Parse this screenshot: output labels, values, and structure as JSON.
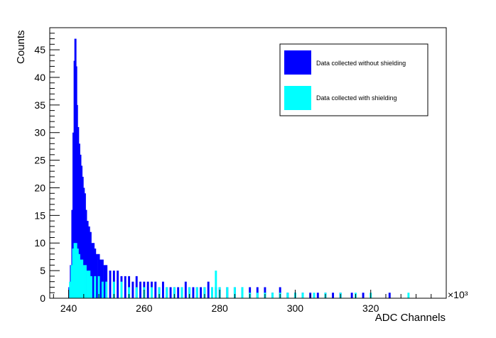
{
  "chart_data": {
    "type": "bar",
    "title": "",
    "xlabel": "ADC Channels",
    "ylabel": "Counts",
    "x_multiplier": "×10³",
    "xlim": [
      235,
      340
    ],
    "ylim": [
      0,
      49
    ],
    "x_ticks": [
      240,
      260,
      280,
      300,
      320
    ],
    "y_ticks": [
      0,
      5,
      10,
      15,
      20,
      25,
      30,
      35,
      40,
      45
    ],
    "legend_position": "top-right",
    "series": [
      {
        "name": "Data collected without shielding",
        "color": "#0000ff",
        "points": [
          [
            240.2,
            2
          ],
          [
            240.6,
            6
          ],
          [
            241.0,
            16
          ],
          [
            241.3,
            30
          ],
          [
            241.6,
            43
          ],
          [
            241.8,
            47
          ],
          [
            242.0,
            42
          ],
          [
            242.2,
            35
          ],
          [
            242.5,
            31
          ],
          [
            242.8,
            28
          ],
          [
            243.1,
            26
          ],
          [
            243.4,
            24
          ],
          [
            243.7,
            22
          ],
          [
            244.0,
            20
          ],
          [
            244.3,
            19
          ],
          [
            244.6,
            16
          ],
          [
            245.0,
            14
          ],
          [
            245.4,
            13
          ],
          [
            245.8,
            12
          ],
          [
            246.2,
            10
          ],
          [
            246.6,
            10
          ],
          [
            247.0,
            9
          ],
          [
            247.5,
            8
          ],
          [
            248.0,
            8
          ],
          [
            248.5,
            7
          ],
          [
            249.0,
            7
          ],
          [
            249.5,
            6
          ],
          [
            250.0,
            6
          ],
          [
            251.0,
            5
          ],
          [
            252.0,
            5
          ],
          [
            253.0,
            5
          ],
          [
            254.0,
            4
          ],
          [
            255.0,
            4
          ],
          [
            256.0,
            4
          ],
          [
            257.0,
            3
          ],
          [
            258.0,
            4
          ],
          [
            259.0,
            3
          ],
          [
            260.0,
            3
          ],
          [
            261.0,
            3
          ],
          [
            262.0,
            3
          ],
          [
            263.0,
            3
          ],
          [
            264.0,
            2
          ],
          [
            265.0,
            3
          ],
          [
            266.0,
            2
          ],
          [
            267.0,
            2
          ],
          [
            268.0,
            2
          ],
          [
            269.0,
            2
          ],
          [
            270.0,
            2
          ],
          [
            271.0,
            3
          ],
          [
            272.0,
            2
          ],
          [
            273.0,
            2
          ],
          [
            274.0,
            2
          ],
          [
            275.0,
            2
          ],
          [
            276.0,
            2
          ],
          [
            277.0,
            3
          ],
          [
            278.0,
            2
          ],
          [
            279.0,
            2
          ],
          [
            280.0,
            2
          ],
          [
            282.0,
            2
          ],
          [
            284.0,
            2
          ],
          [
            286.0,
            2
          ],
          [
            288.0,
            2
          ],
          [
            290.0,
            2
          ],
          [
            292.0,
            2
          ],
          [
            294.0,
            1
          ],
          [
            296.0,
            2
          ],
          [
            298.0,
            1
          ],
          [
            300.0,
            1
          ],
          [
            302.0,
            1
          ],
          [
            304.0,
            1
          ],
          [
            306.0,
            1
          ],
          [
            308.0,
            1
          ],
          [
            310.0,
            1
          ],
          [
            312.0,
            1
          ],
          [
            315.0,
            1
          ],
          [
            318.0,
            1
          ],
          [
            325.0,
            1
          ]
        ]
      },
      {
        "name": "Data collected with shielding",
        "color": "#00ffff",
        "points": [
          [
            240.4,
            3
          ],
          [
            240.8,
            6
          ],
          [
            241.2,
            9
          ],
          [
            241.6,
            10
          ],
          [
            242.0,
            10
          ],
          [
            242.4,
            9
          ],
          [
            242.8,
            8
          ],
          [
            243.2,
            7
          ],
          [
            243.6,
            7
          ],
          [
            244.0,
            6
          ],
          [
            244.5,
            6
          ],
          [
            245.0,
            5
          ],
          [
            245.5,
            5
          ],
          [
            246.0,
            4
          ],
          [
            247.0,
            4
          ],
          [
            248.0,
            4
          ],
          [
            249.0,
            3
          ],
          [
            250.0,
            3
          ],
          [
            252.0,
            3
          ],
          [
            254.0,
            3
          ],
          [
            256.0,
            2
          ],
          [
            258.0,
            2
          ],
          [
            260.0,
            2
          ],
          [
            262.0,
            2
          ],
          [
            264.0,
            2
          ],
          [
            266.0,
            2
          ],
          [
            268.0,
            2
          ],
          [
            270.0,
            2
          ],
          [
            272.0,
            2
          ],
          [
            274.0,
            2
          ],
          [
            276.0,
            2
          ],
          [
            278.0,
            2
          ],
          [
            279.0,
            5
          ],
          [
            280.0,
            2
          ],
          [
            282.0,
            2
          ],
          [
            284.0,
            2
          ],
          [
            286.0,
            2
          ],
          [
            288.0,
            1
          ],
          [
            290.0,
            1
          ],
          [
            292.0,
            1
          ],
          [
            294.0,
            1
          ],
          [
            296.0,
            1
          ],
          [
            298.0,
            1
          ],
          [
            300.0,
            1
          ],
          [
            302.0,
            1
          ],
          [
            305.0,
            1
          ],
          [
            308.0,
            1
          ],
          [
            312.0,
            1
          ],
          [
            316.0,
            1
          ],
          [
            320.0,
            1
          ],
          [
            330.0,
            1
          ]
        ]
      }
    ]
  }
}
